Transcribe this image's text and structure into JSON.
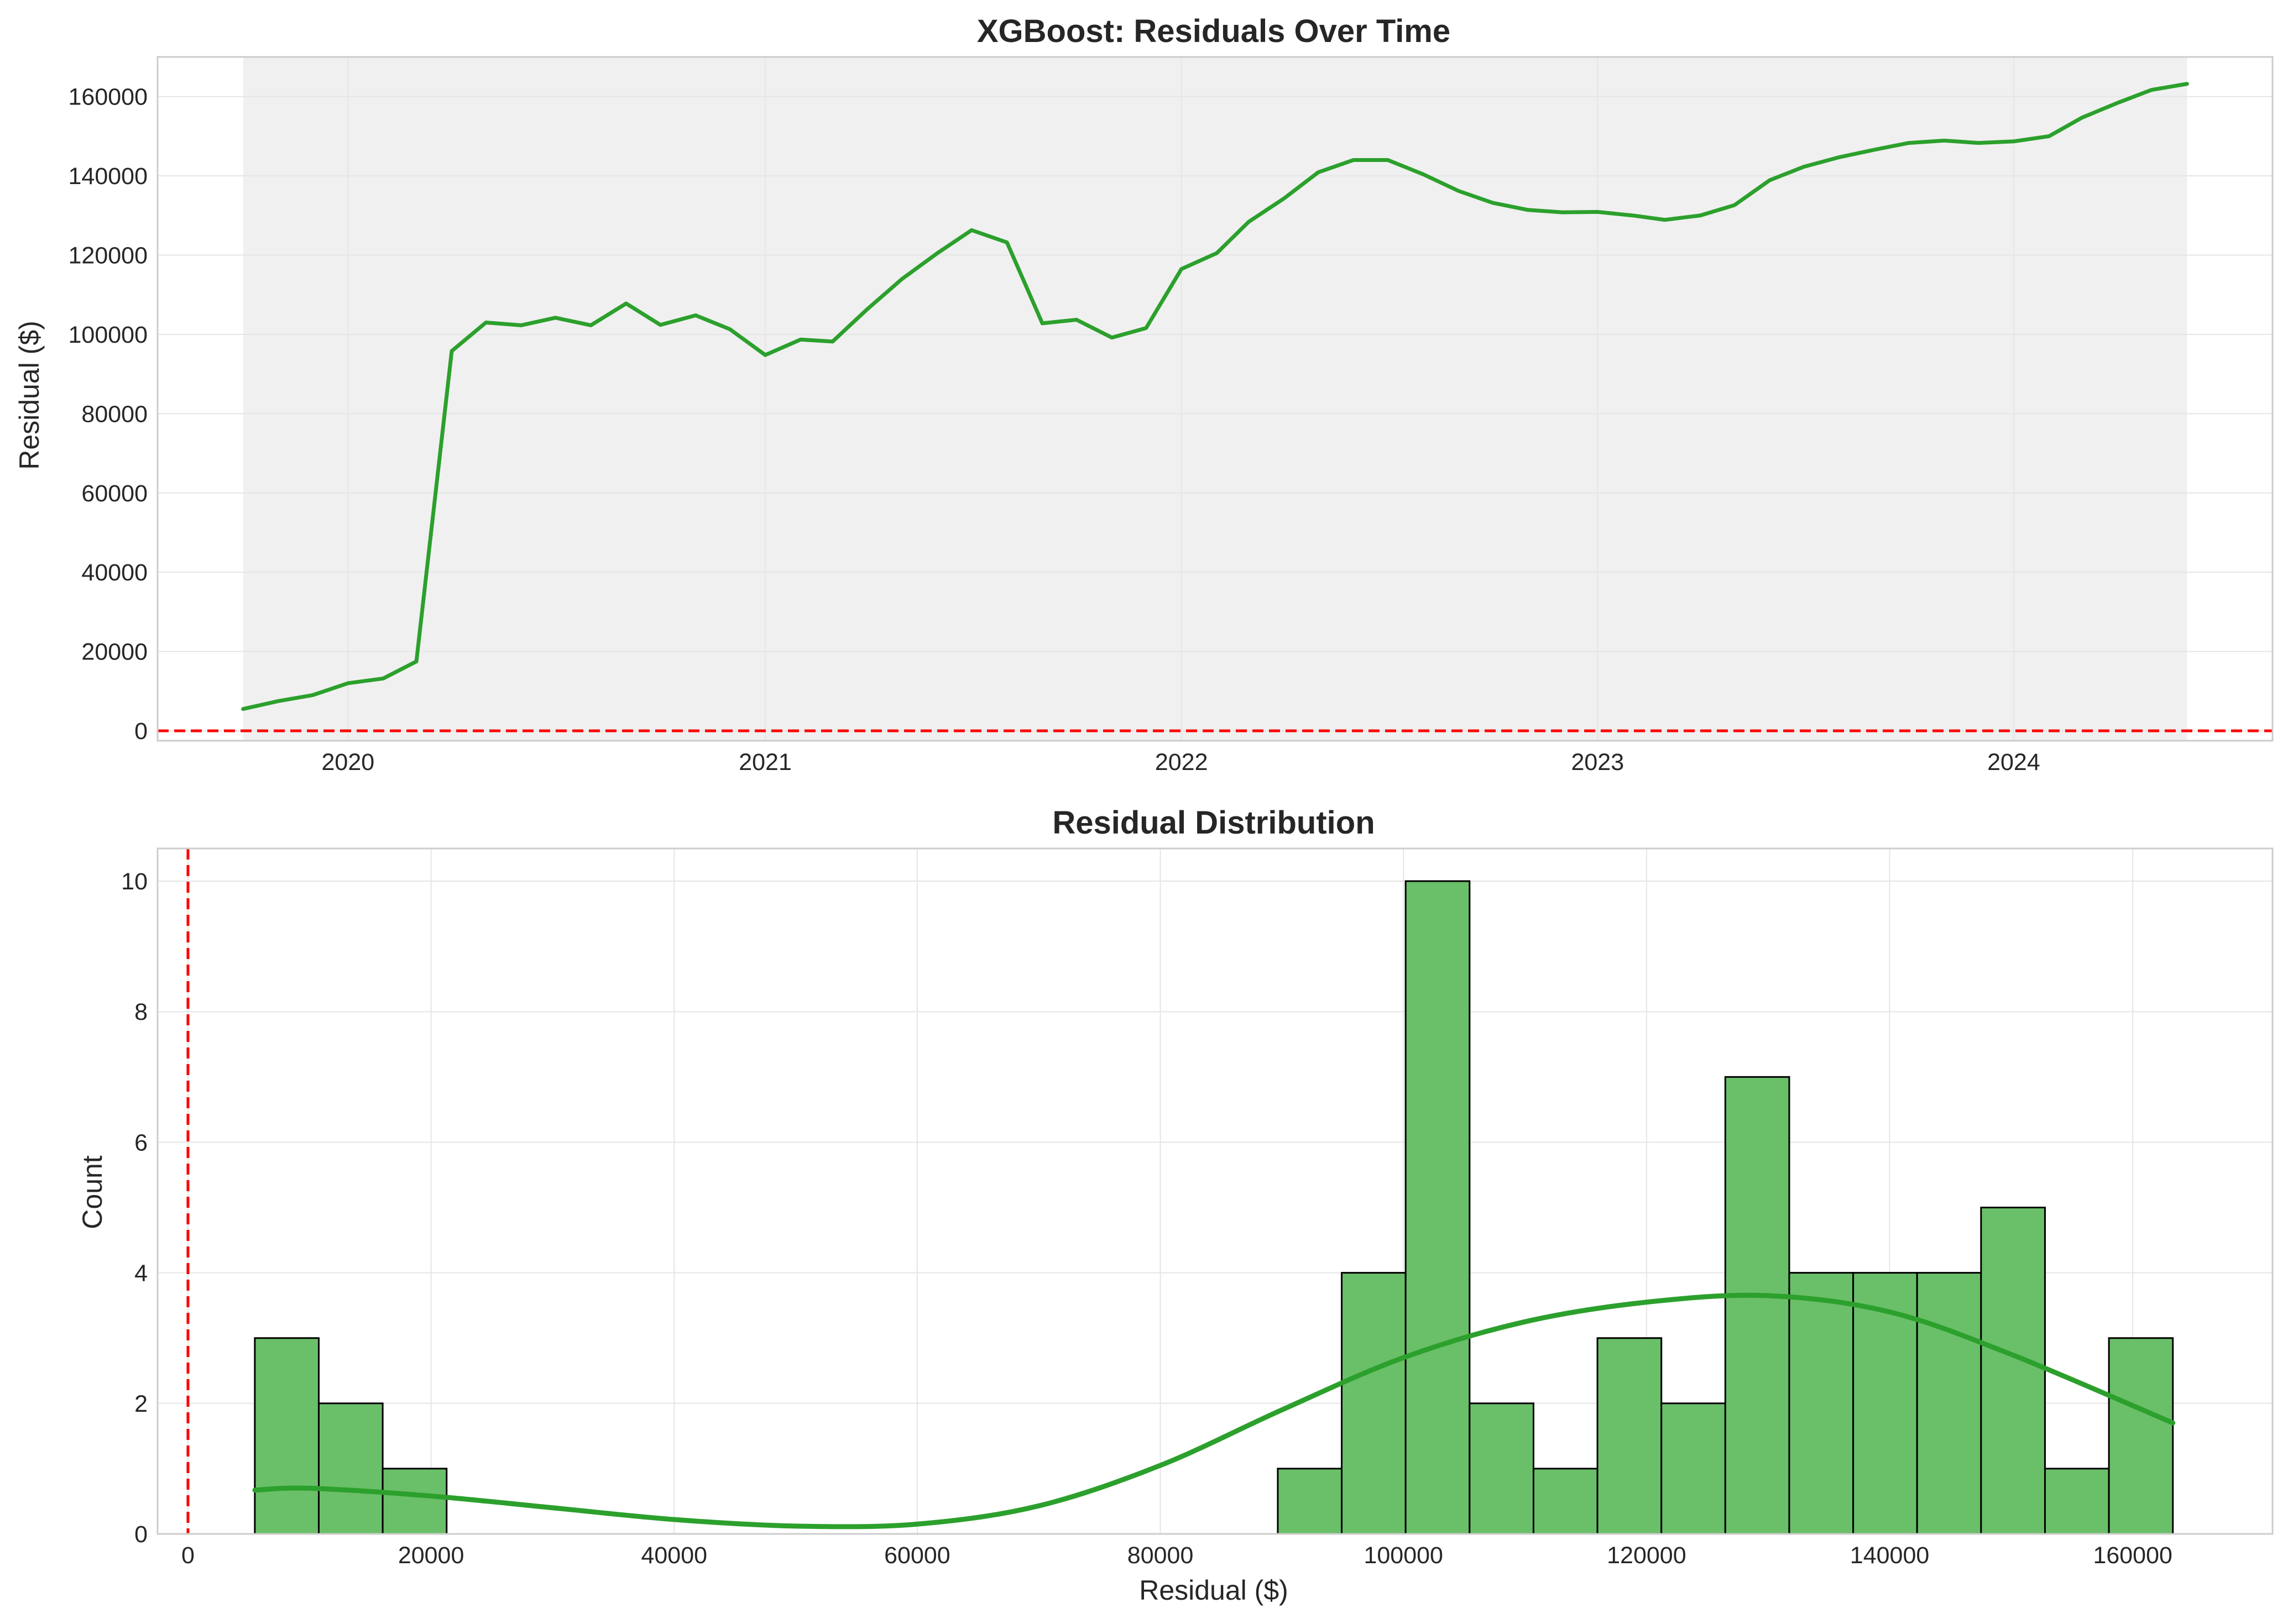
{
  "colors": {
    "line": "#2ca02c",
    "bar_fill": "#6abf69",
    "bar_edge": "#000000",
    "reference_line": "#ff0000",
    "shade": "#f0f0f0",
    "grid": "#e5e5e5",
    "frame": "#cccccc"
  },
  "chart_data": [
    {
      "type": "line",
      "title": "XGBoost: Residuals Over Time",
      "xlabel": "",
      "ylabel": "Residual ($)",
      "x_tick_labels": [
        "2020",
        "2021",
        "2022",
        "2023",
        "2024"
      ],
      "y_tick_labels": [
        "0",
        "20000",
        "40000",
        "60000",
        "80000",
        "100000",
        "120000",
        "140000",
        "160000"
      ],
      "ylim": [
        -2500,
        170000
      ],
      "xlim": [
        "2019-07-18",
        "2024-08-15"
      ],
      "reference_line": {
        "axis": "y",
        "value": 0,
        "style": "dashed"
      },
      "shaded_span": [
        "2019-10-01",
        "2024-06-01"
      ],
      "grid": true,
      "series": [
        {
          "x": [
            "2019-10",
            "2019-11",
            "2019-12",
            "2020-01",
            "2020-02",
            "2020-03",
            "2020-04",
            "2020-05",
            "2020-06",
            "2020-07",
            "2020-08",
            "2020-09",
            "2020-10",
            "2020-11",
            "2020-12",
            "2021-01",
            "2021-02",
            "2021-03",
            "2021-04",
            "2021-05",
            "2021-06",
            "2021-07",
            "2021-08",
            "2021-09",
            "2021-10",
            "2021-11",
            "2021-12",
            "2022-01",
            "2022-02",
            "2022-03",
            "2022-04",
            "2022-05",
            "2022-06",
            "2022-07",
            "2022-08",
            "2022-09",
            "2022-10",
            "2022-11",
            "2022-12",
            "2023-01",
            "2023-02",
            "2023-03",
            "2023-04",
            "2023-05",
            "2023-06",
            "2023-07",
            "2023-08",
            "2023-09",
            "2023-10",
            "2023-11",
            "2023-12",
            "2024-01",
            "2024-02",
            "2024-03",
            "2024-04",
            "2024-05",
            "2024-06"
          ],
          "values": [
            5500,
            7500,
            9000,
            12000,
            13200,
            17500,
            95800,
            103000,
            102300,
            104200,
            102300,
            107800,
            102400,
            104800,
            101300,
            94800,
            98700,
            98200,
            106500,
            114000,
            120500,
            126300,
            123200,
            102800,
            103700,
            99200,
            101600,
            116500,
            120500,
            128400,
            134300,
            140900,
            144000,
            144000,
            140400,
            136200,
            133200,
            131400,
            130800,
            130900,
            130000,
            128900,
            130000,
            132600,
            138900,
            142300,
            144700,
            146600,
            148300,
            148900,
            148300,
            148700,
            150000,
            154700,
            158400,
            161700,
            163200
          ]
        }
      ]
    },
    {
      "type": "bar",
      "title": "Residual Distribution",
      "xlabel": "Residual ($)",
      "ylabel": "Count",
      "x_tick_labels": [
        "0",
        "20000",
        "40000",
        "60000",
        "80000",
        "100000",
        "120000",
        "140000",
        "160000"
      ],
      "y_tick_labels": [
        "0",
        "2",
        "4",
        "6",
        "8",
        "10"
      ],
      "xlim": [
        -2500,
        171500
      ],
      "ylim": [
        0,
        10.5
      ],
      "reference_line": {
        "axis": "x",
        "value": 0,
        "style": "dashed"
      },
      "grid": true,
      "bin_edges": [
        5500,
        10760,
        16020,
        21280,
        26540,
        31800,
        37060,
        42320,
        47580,
        52840,
        58100,
        63360,
        68620,
        73880,
        79140,
        84400,
        89660,
        94920,
        100180,
        105440,
        110700,
        115960,
        121220,
        126480,
        131740,
        137000,
        142260,
        147520,
        152780,
        158040,
        163300
      ],
      "counts": [
        3,
        2,
        1,
        0,
        0,
        0,
        0,
        0,
        0,
        0,
        0,
        0,
        0,
        0,
        0,
        0,
        1,
        4,
        10,
        2,
        1,
        3,
        2,
        7,
        4,
        4,
        4,
        5,
        1,
        3
      ],
      "kde": {
        "x": [
          5500,
          10000,
          20000,
          30000,
          40000,
          50000,
          60000,
          70000,
          80000,
          90000,
          100000,
          110000,
          120000,
          130000,
          140000,
          150000,
          163300
        ],
        "values": [
          0.67,
          0.7,
          0.58,
          0.4,
          0.22,
          0.12,
          0.15,
          0.43,
          1.05,
          1.9,
          2.7,
          3.25,
          3.55,
          3.65,
          3.4,
          2.75,
          1.7
        ]
      }
    }
  ]
}
